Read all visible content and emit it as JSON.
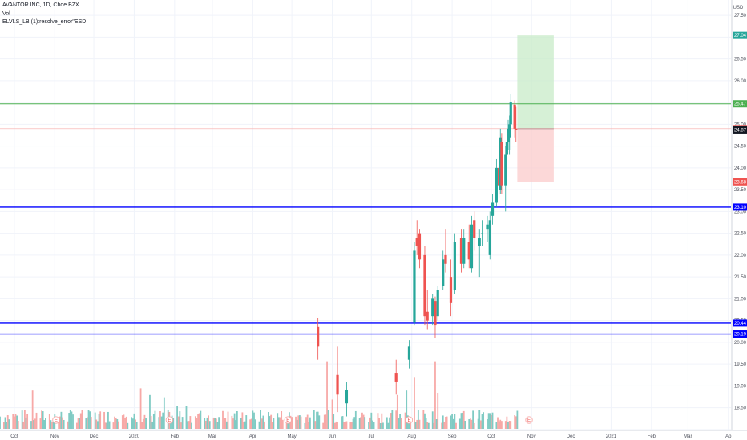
{
  "header": {
    "title": "AVANTOR INC, 1D, Cboe BZX",
    "vol_label": "Vol",
    "indicator": "ELVLS_LB (1):resolve_error\"ESD"
  },
  "currency_label": "USD",
  "colors": {
    "up": "#26a69a",
    "down": "#ef5350",
    "vol_up": "#80cbc4",
    "vol_down": "#f7a9a7",
    "level_blue": "#0000ff",
    "level_green": "#4caf50",
    "target_zone": "#c8ebc8",
    "stop_zone": "#fbcbcb",
    "axis_text": "#50535e"
  },
  "chart_data": {
    "type": "candlestick",
    "y_axis": {
      "ticks": [
        "27.50",
        "27.00",
        "26.50",
        "26.00",
        "25.50",
        "25.00",
        "24.50",
        "24.00",
        "23.50",
        "23.00",
        "22.50",
        "22.00",
        "21.50",
        "21.00",
        "20.50",
        "20.00",
        "19.50",
        "19.00",
        "18.50",
        "18.00"
      ],
      "ylim": [
        17.98,
        27.85
      ]
    },
    "x_axis": {
      "ticks": [
        "Oct",
        "Nov",
        "Dec",
        "2020",
        "Feb",
        "Mar",
        "Apr",
        "May",
        "Jun",
        "Jul",
        "Aug",
        "Sep",
        "Oct",
        "Nov",
        "Dec",
        "2021",
        "Feb",
        "Mar",
        "Ap"
      ],
      "start": "2019-09-20",
      "end": "2021-04-03"
    },
    "horizontal_levels": [
      {
        "value": 25.47,
        "label": "25.47",
        "color": "#4caf50"
      },
      {
        "value": 23.1,
        "label": "23.10",
        "color": "#0000ff"
      },
      {
        "value": 20.44,
        "label": "20.44",
        "color": "#0000ff"
      },
      {
        "value": 20.19,
        "label": "20.19",
        "color": "#0000ff"
      }
    ],
    "price_labels": [
      {
        "value": 27.04,
        "label": "27.04",
        "color": "#26a69a"
      },
      {
        "value": 24.9,
        "label": "24.90",
        "color": "#ef5350"
      },
      {
        "value": 24.87,
        "label": "24.87",
        "color": "#131722"
      },
      {
        "value": 23.68,
        "label": "23.68",
        "color": "#ef5350"
      }
    ],
    "position": {
      "start": "2020-10-21",
      "end": "2020-11-18",
      "entry": 24.9,
      "target": 27.04,
      "stop": 23.68
    },
    "earnings_markers": [
      "2019-11-02",
      "2020-01-28",
      "2020-04-28",
      "2020-07-30",
      "2020-10-30"
    ],
    "earnings_label": "E",
    "candles": [
      {
        "d": "2020-05-21",
        "o": 20.35,
        "h": 20.55,
        "l": 19.6,
        "c": 19.9
      },
      {
        "d": "2020-06-05",
        "o": 19.25,
        "h": 19.9,
        "l": 18.4,
        "c": 18.8
      },
      {
        "d": "2020-06-12",
        "o": 18.6,
        "h": 19.1,
        "l": 18.3,
        "c": 18.9
      },
      {
        "d": "2020-07-20",
        "o": 19.3,
        "h": 19.6,
        "l": 18.8,
        "c": 19.1
      },
      {
        "d": "2020-07-30",
        "o": 19.6,
        "h": 20.05,
        "l": 19.4,
        "c": 19.9
      },
      {
        "d": "2020-08-03",
        "o": 20.45,
        "h": 22.3,
        "l": 20.4,
        "c": 22.1
      },
      {
        "d": "2020-08-05",
        "o": 22.4,
        "h": 22.8,
        "l": 22.0,
        "c": 22.2
      },
      {
        "d": "2020-08-07",
        "o": 22.5,
        "h": 22.6,
        "l": 21.7,
        "c": 21.9
      },
      {
        "d": "2020-08-11",
        "o": 22.0,
        "h": 22.2,
        "l": 20.4,
        "c": 20.6
      },
      {
        "d": "2020-08-13",
        "o": 20.7,
        "h": 21.2,
        "l": 20.3,
        "c": 20.5
      },
      {
        "d": "2020-08-17",
        "o": 20.6,
        "h": 21.1,
        "l": 20.4,
        "c": 21.0
      },
      {
        "d": "2020-08-19",
        "o": 20.95,
        "h": 21.05,
        "l": 20.1,
        "c": 20.4
      },
      {
        "d": "2020-08-21",
        "o": 20.6,
        "h": 21.3,
        "l": 20.5,
        "c": 21.2
      },
      {
        "d": "2020-08-25",
        "o": 21.3,
        "h": 22.1,
        "l": 21.2,
        "c": 21.9
      },
      {
        "d": "2020-08-27",
        "o": 22.0,
        "h": 22.6,
        "l": 21.6,
        "c": 21.8
      },
      {
        "d": "2020-08-31",
        "o": 21.5,
        "h": 21.9,
        "l": 20.6,
        "c": 20.9
      },
      {
        "d": "2020-09-03",
        "o": 21.2,
        "h": 22.5,
        "l": 21.1,
        "c": 22.3
      },
      {
        "d": "2020-09-08",
        "o": 22.4,
        "h": 22.6,
        "l": 21.6,
        "c": 21.8
      },
      {
        "d": "2020-09-10",
        "o": 21.8,
        "h": 22.6,
        "l": 21.7,
        "c": 22.4
      },
      {
        "d": "2020-09-14",
        "o": 22.3,
        "h": 22.7,
        "l": 21.7,
        "c": 21.9
      },
      {
        "d": "2020-09-16",
        "o": 21.7,
        "h": 22.9,
        "l": 21.6,
        "c": 22.7
      },
      {
        "d": "2020-09-18",
        "o": 22.8,
        "h": 23.0,
        "l": 22.1,
        "c": 22.4
      },
      {
        "d": "2020-09-22",
        "o": 22.2,
        "h": 22.6,
        "l": 21.5,
        "c": 22.4
      },
      {
        "d": "2020-09-24",
        "o": 22.5,
        "h": 22.8,
        "l": 22.2,
        "c": 22.5
      },
      {
        "d": "2020-09-28",
        "o": 22.6,
        "h": 22.9,
        "l": 22.3,
        "c": 22.7
      },
      {
        "d": "2020-09-30",
        "o": 22.0,
        "h": 23.0,
        "l": 21.9,
        "c": 22.8
      },
      {
        "d": "2020-10-02",
        "o": 22.9,
        "h": 23.4,
        "l": 22.7,
        "c": 23.2
      },
      {
        "d": "2020-10-05",
        "o": 23.2,
        "h": 24.2,
        "l": 23.1,
        "c": 24.0
      },
      {
        "d": "2020-10-07",
        "o": 24.0,
        "h": 24.6,
        "l": 23.3,
        "c": 23.6
      },
      {
        "d": "2020-10-08",
        "o": 23.5,
        "h": 24.9,
        "l": 23.4,
        "c": 24.7
      },
      {
        "d": "2020-10-09",
        "o": 24.6,
        "h": 24.8,
        "l": 23.4,
        "c": 23.6
      },
      {
        "d": "2020-10-12",
        "o": 23.6,
        "h": 24.5,
        "l": 23.0,
        "c": 24.3
      },
      {
        "d": "2020-10-13",
        "o": 24.3,
        "h": 24.9,
        "l": 24.1,
        "c": 24.6
      },
      {
        "d": "2020-10-14",
        "o": 24.6,
        "h": 25.1,
        "l": 24.4,
        "c": 24.9
      },
      {
        "d": "2020-10-15",
        "o": 24.7,
        "h": 25.2,
        "l": 24.3,
        "c": 25.0
      },
      {
        "d": "2020-10-16",
        "o": 25.0,
        "h": 25.7,
        "l": 24.4,
        "c": 25.5
      },
      {
        "d": "2020-10-19",
        "o": 25.45,
        "h": 25.55,
        "l": 24.7,
        "c": 24.9
      },
      {
        "d": "2020-10-20",
        "o": 24.9,
        "h": 25.4,
        "l": 24.6,
        "c": 24.87
      }
    ],
    "volume": {
      "ylim": [
        0,
        3.2
      ],
      "up_days_from": "2020-05-01",
      "spikes": [
        {
          "d": "2019-10-15",
          "v": 1.7
        },
        {
          "d": "2019-12-23",
          "v": 0.6
        },
        {
          "d": "2020-01-06",
          "v": 1.8
        },
        {
          "d": "2020-01-13",
          "v": 1.5
        },
        {
          "d": "2020-01-24",
          "v": 1.4
        },
        {
          "d": "2020-02-03",
          "v": 1.0
        },
        {
          "d": "2020-02-10",
          "v": 1.0
        },
        {
          "d": "2020-03-02",
          "v": 0.5
        },
        {
          "d": "2020-05-28",
          "v": 3.0
        },
        {
          "d": "2020-06-01",
          "v": 1.3
        },
        {
          "d": "2020-07-21",
          "v": 1.5
        },
        {
          "d": "2020-07-28",
          "v": 1.7
        },
        {
          "d": "2020-08-03",
          "v": 2.3
        },
        {
          "d": "2020-08-19",
          "v": 3.0
        },
        {
          "d": "2020-08-21",
          "v": 1.6
        },
        {
          "d": "2020-10-21",
          "v": 0.8
        }
      ]
    }
  }
}
